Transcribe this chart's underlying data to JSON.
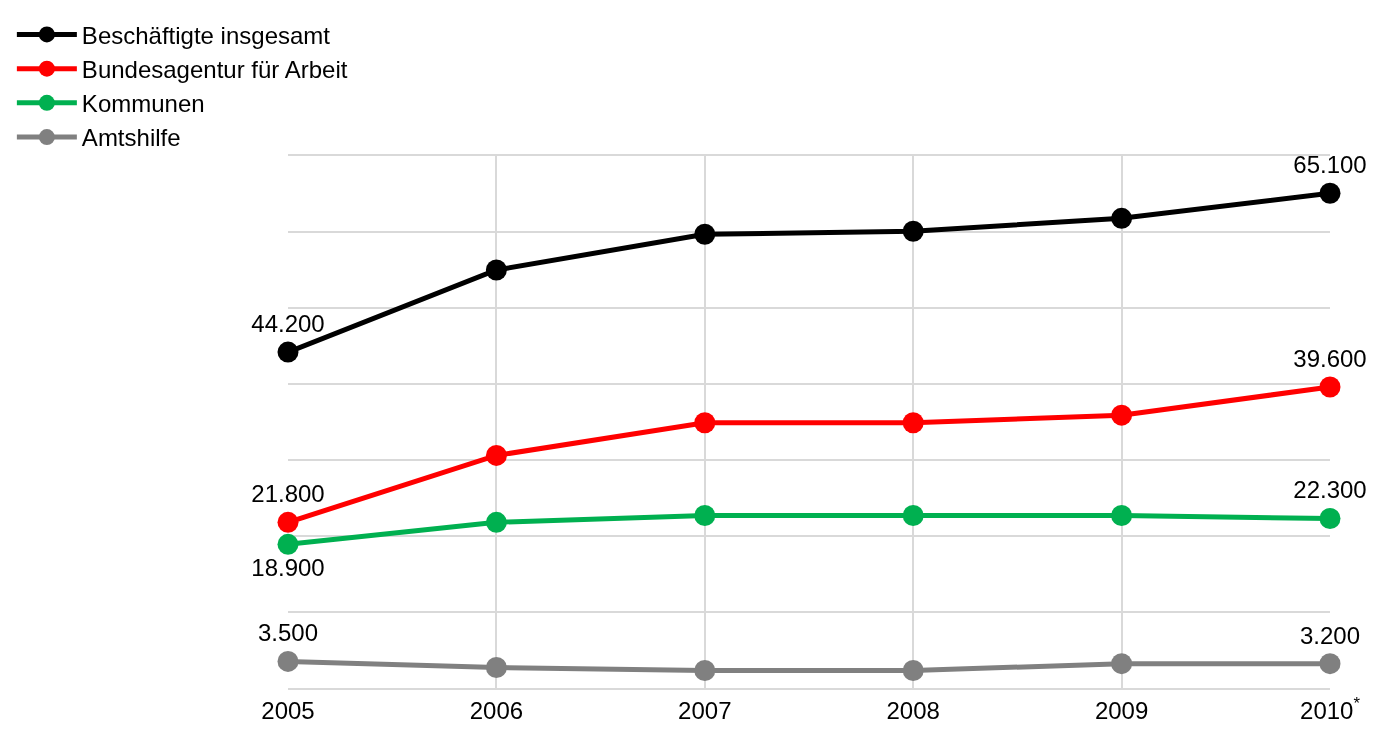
{
  "chart_data": {
    "type": "line",
    "categories": [
      "2005",
      "2006",
      "2007",
      "2008",
      "2009",
      "2010$^{*}$"
    ],
    "series": [
      {
        "name": "Beschäftigte insgesamt",
        "color": "#000000",
        "values": [
          44200,
          55000,
          59700,
          60100,
          61800,
          65100
        ],
        "value_labels": [
          "44.200",
          null,
          null,
          null,
          null,
          "65.100"
        ]
      },
      {
        "name": "Bundesagentur für Arbeit",
        "color": "#ff0000",
        "values": [
          21800,
          30600,
          34900,
          34900,
          35900,
          39600
        ],
        "value_labels": [
          "21.800",
          null,
          null,
          null,
          null,
          "39.600"
        ]
      },
      {
        "name": "Kommunen",
        "color": "#00b050",
        "values": [
          18900,
          21800,
          22700,
          22700,
          22700,
          22300
        ],
        "value_labels": [
          "18.900",
          null,
          null,
          null,
          null,
          "22.300"
        ]
      },
      {
        "name": "Amtshilfe",
        "color": "#808080",
        "values": [
          3500,
          2700,
          2300,
          2300,
          3200,
          3200
        ],
        "value_labels": [
          "3.500",
          null,
          null,
          null,
          null,
          "3.200"
        ]
      }
    ],
    "ylim": [
      0,
      70000
    ],
    "yticks": [
      {
        "value": 0,
        "label": null
      },
      {
        "value": 10000,
        "label": null
      },
      {
        "value": 20000,
        "label": null
      },
      {
        "value": 30000,
        "label": null
      },
      {
        "value": 40000,
        "label": null
      },
      {
        "value": 50000,
        "label": null
      },
      {
        "value": 60000,
        "label": null
      },
      {
        "value": 70000,
        "label": null
      }
    ],
    "tick_labels": "x",
    "grid": true,
    "legend": "top left",
    "marker": "circle",
    "line_style": "solid"
  }
}
